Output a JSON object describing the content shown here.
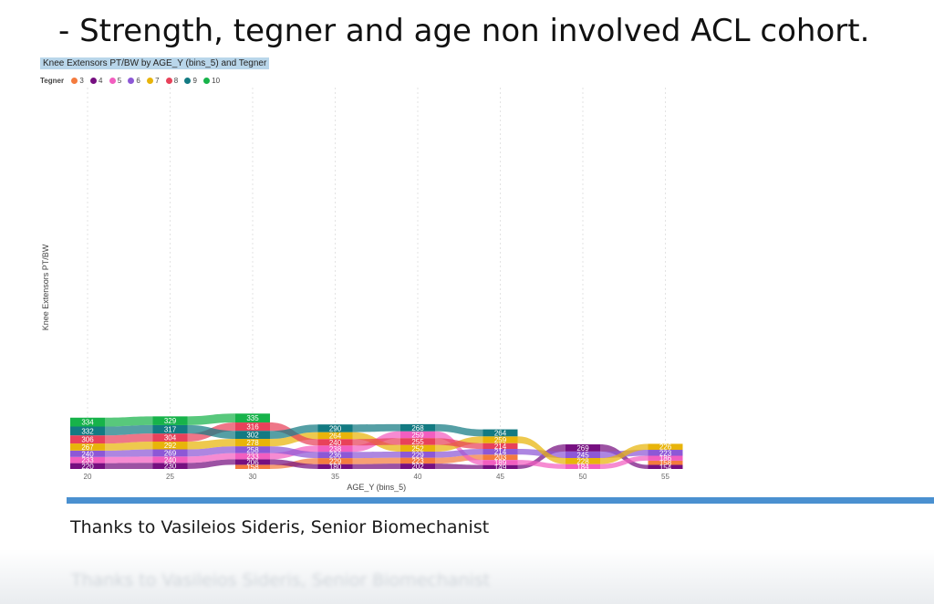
{
  "slide": {
    "title": "- Strength, tegner and age non involved ACL cohort.",
    "credit": "Thanks to Vasileios Sideris, Senior Biomechanist"
  },
  "legend": {
    "label": "Tegner",
    "items": [
      {
        "name": "3",
        "color": "#f47b3e"
      },
      {
        "name": "4",
        "color": "#760f80"
      },
      {
        "name": "5",
        "color": "#f25ec0"
      },
      {
        "name": "6",
        "color": "#8d58d6"
      },
      {
        "name": "7",
        "color": "#e8b40a"
      },
      {
        "name": "8",
        "color": "#e8415a"
      },
      {
        "name": "9",
        "color": "#137a82"
      },
      {
        "name": "10",
        "color": "#17b34a"
      }
    ]
  },
  "chart_data": {
    "type": "ribbon",
    "title": "Knee Extensors PT/BW by AGE_Y (bins_5) and Tegner",
    "xlabel": "AGE_Y (bins_5)",
    "ylabel": "Knee Extensors PT/BW",
    "categories": [
      "20",
      "25",
      "30",
      "35",
      "40",
      "45",
      "50",
      "55"
    ],
    "series": [
      {
        "name": "3",
        "values": [
          null,
          null,
          158,
          229,
          223,
          203,
          null,
          158
        ]
      },
      {
        "name": "4",
        "values": [
          220,
          230,
          206,
          180,
          202,
          149,
          269,
          154
        ]
      },
      {
        "name": "5",
        "values": [
          233,
          240,
          233,
          238,
          259,
          189,
          184,
          186
        ]
      },
      {
        "name": "6",
        "values": [
          240,
          269,
          258,
          236,
          229,
          214,
          245,
          223
        ]
      },
      {
        "name": "7",
        "values": [
          267,
          292,
          278,
          264,
          252,
          259,
          228,
          226
        ]
      },
      {
        "name": "8",
        "values": [
          306,
          304,
          316,
          240,
          255,
          214,
          null,
          null
        ]
      },
      {
        "name": "9",
        "values": [
          332,
          317,
          302,
          290,
          268,
          264,
          null,
          null
        ]
      },
      {
        "name": "10",
        "values": [
          334,
          329,
          335,
          null,
          null,
          null,
          null,
          null
        ]
      }
    ],
    "grid": true,
    "legend_position": "top-left"
  }
}
